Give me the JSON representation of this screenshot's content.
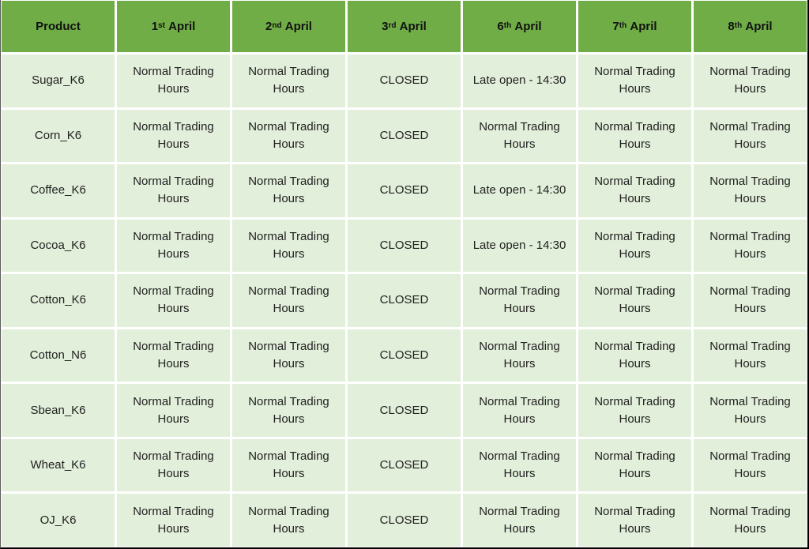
{
  "colors": {
    "header_bg": "#70AD47",
    "header_text": "#111111",
    "cell_bg": "#E2EFDA",
    "cell_text": "#212121",
    "grid_line": "#FFFFFF"
  },
  "table": {
    "columns": [
      {
        "label": "Product"
      },
      {
        "day": "1",
        "suffix": "st",
        "month": "April"
      },
      {
        "day": "2",
        "suffix": "nd",
        "month": "April"
      },
      {
        "day": "3",
        "suffix": "rd",
        "month": "April"
      },
      {
        "day": "6",
        "suffix": "th",
        "month": "April"
      },
      {
        "day": "7",
        "suffix": "th",
        "month": "April"
      },
      {
        "day": "8",
        "suffix": "th",
        "month": "April"
      }
    ],
    "rows": [
      {
        "product": "Sugar_K6",
        "cells": [
          "Normal Trading Hours",
          "Normal Trading Hours",
          "CLOSED",
          "Late open - 14:30",
          "Normal Trading Hours",
          "Normal Trading Hours"
        ]
      },
      {
        "product": "Corn_K6",
        "cells": [
          "Normal Trading Hours",
          "Normal Trading Hours",
          "CLOSED",
          "Normal Trading Hours",
          "Normal Trading Hours",
          "Normal Trading Hours"
        ]
      },
      {
        "product": "Coffee_K6",
        "cells": [
          "Normal Trading Hours",
          "Normal Trading Hours",
          "CLOSED",
          "Late open - 14:30",
          "Normal Trading Hours",
          "Normal Trading Hours"
        ]
      },
      {
        "product": "Cocoa_K6",
        "cells": [
          "Normal Trading Hours",
          "Normal Trading Hours",
          "CLOSED",
          "Late open - 14:30",
          "Normal Trading Hours",
          "Normal Trading Hours"
        ]
      },
      {
        "product": "Cotton_K6",
        "cells": [
          "Normal Trading Hours",
          "Normal Trading Hours",
          "CLOSED",
          "Normal Trading Hours",
          "Normal Trading Hours",
          "Normal Trading Hours"
        ]
      },
      {
        "product": "Cotton_N6",
        "cells": [
          "Normal Trading Hours",
          "Normal Trading Hours",
          "CLOSED",
          "Normal Trading Hours",
          "Normal Trading Hours",
          "Normal Trading Hours"
        ]
      },
      {
        "product": "Sbean_K6",
        "cells": [
          "Normal Trading Hours",
          "Normal Trading Hours",
          "CLOSED",
          "Normal Trading Hours",
          "Normal Trading Hours",
          "Normal Trading Hours"
        ]
      },
      {
        "product": "Wheat_K6",
        "cells": [
          "Normal Trading Hours",
          "Normal Trading Hours",
          "CLOSED",
          "Normal Trading Hours",
          "Normal Trading Hours",
          "Normal Trading Hours"
        ]
      },
      {
        "product": "OJ_K6",
        "cells": [
          "Normal Trading Hours",
          "Normal Trading Hours",
          "CLOSED",
          "Normal Trading Hours",
          "Normal Trading Hours",
          "Normal Trading Hours"
        ]
      }
    ]
  }
}
